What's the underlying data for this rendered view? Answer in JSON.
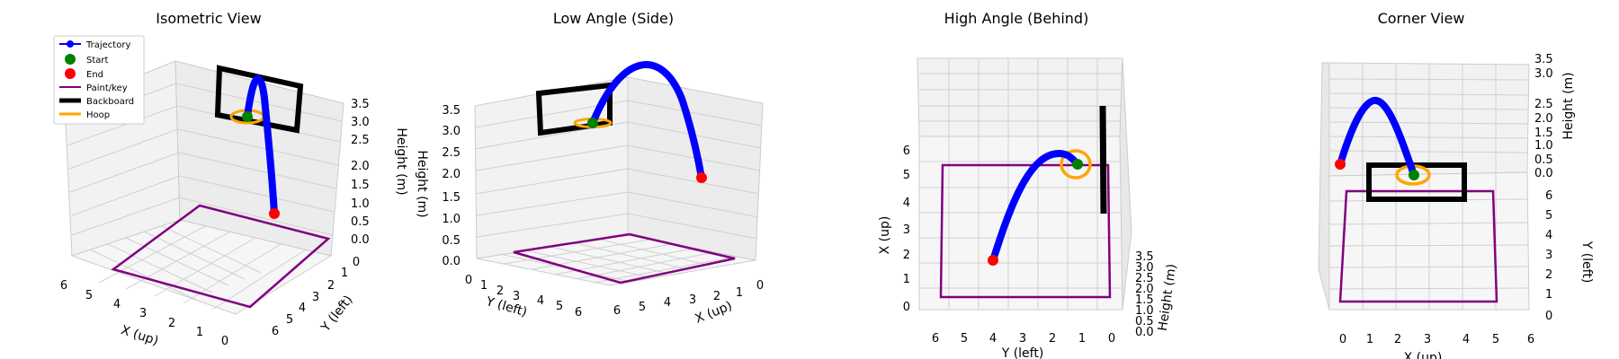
{
  "chart_data": [
    {
      "type": "line3d",
      "title": "Isometric View",
      "view": "isometric",
      "xlabel": "X (up)",
      "ylabel": "Y (left)",
      "zlabel": "Height (m)",
      "xticks": [
        "0",
        "1",
        "2",
        "3",
        "4",
        "5",
        "6"
      ],
      "yticks": [
        "0",
        "1",
        "2",
        "3",
        "4",
        "5",
        "6"
      ],
      "zticks": [
        "0.0",
        "0.5",
        "1.0",
        "1.5",
        "2.0",
        "2.5",
        "3.0",
        "3.5"
      ],
      "legend": {
        "placement": "top-left",
        "entries": [
          "Trajectory",
          "Start",
          "End",
          "Paint/key",
          "Backboard",
          "Hoop"
        ]
      }
    },
    {
      "type": "line3d",
      "title": "Low Angle (Side)",
      "view": "low-side",
      "xlabel": "X (up)",
      "ylabel": "Y (left)",
      "zlabel": "Height (m)",
      "xticks": [
        "0",
        "1",
        "2",
        "3",
        "4",
        "5",
        "6"
      ],
      "yticks": [
        "0",
        "1",
        "2",
        "3",
        "4",
        "5",
        "6"
      ],
      "zticks": [
        "0.0",
        "0.5",
        "1.0",
        "1.5",
        "2.0",
        "2.5",
        "3.0",
        "3.5"
      ]
    },
    {
      "type": "line3d",
      "title": "High Angle (Behind)",
      "view": "high-behind",
      "xlabel": "X (up)",
      "ylabel": "Y (left)",
      "zlabel": "Height (m)",
      "xticks": [
        "0",
        "1",
        "2",
        "3",
        "4",
        "5",
        "6"
      ],
      "yticks": [
        "6",
        "5",
        "4",
        "3",
        "2",
        "1",
        "0"
      ],
      "zticks": [
        "0.0",
        "0.5",
        "1.0",
        "1.5",
        "2.0",
        "2.5",
        "3.0",
        "3.5"
      ]
    },
    {
      "type": "line3d",
      "title": "Corner View",
      "view": "corner",
      "xlabel": "X (up)",
      "ylabel": "Y (left)",
      "zlabel": "Height (m)",
      "xticks": [
        "0",
        "1",
        "2",
        "3",
        "4",
        "5",
        "6"
      ],
      "yticks": [
        "0",
        "1",
        "2",
        "3",
        "4",
        "5",
        "6"
      ],
      "zticks": [
        "0.0",
        "0.5",
        "1.0",
        "1.5",
        "2.0",
        "2.5",
        "3.0",
        "3.5"
      ]
    }
  ],
  "scene": {
    "trajectory": {
      "start": [
        1.2,
        1.0,
        3.05
      ],
      "peak": [
        2.6,
        1.0,
        3.6
      ],
      "end": [
        4.0,
        1.0,
        2.0
      ]
    },
    "paint_key": [
      [
        0,
        0,
        0
      ],
      [
        5,
        0,
        0
      ],
      [
        5,
        4.8,
        0
      ],
      [
        0,
        4.8,
        0
      ]
    ],
    "backboard": {
      "y": 1.0,
      "x_range": [
        0.1,
        1.9
      ],
      "z_range": [
        2.9,
        3.95
      ]
    },
    "hoop": {
      "center": [
        1.1,
        1.0,
        3.05
      ],
      "radius": 0.23
    }
  },
  "colors": {
    "trajectory": "#0000ff",
    "start": "#008000",
    "end": "#ff0000",
    "paint_key": "#800080",
    "backboard": "#000000",
    "hoop": "#ffa500",
    "pane": "#f2f2f2",
    "grid": "#d0d0d0"
  }
}
